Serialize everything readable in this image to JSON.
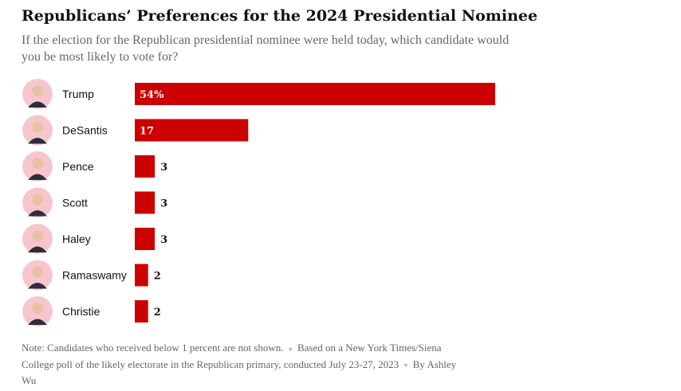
{
  "title": "Republicans’ Preferences for the 2024 Presidential Nominee",
  "subtitle": "If the election for the Republican presidential nominee were held today, which candidate would you be most likely to vote for?",
  "note": "Note: Candidates who received below 1 percent are not shown.",
  "source": "Based on a New York Times/Siena College poll of the likely electorate in the Republican primary, conducted July 23-27, 2023",
  "byline": "By Ashley Wu",
  "colors": {
    "bar": "#cc0000",
    "avatar_bg": "#f7c6cc",
    "label": "#121212",
    "value_inside": "#ffffff"
  },
  "chart_data": {
    "type": "bar",
    "orientation": "horizontal",
    "categories": [
      "Trump",
      "DeSantis",
      "Pence",
      "Scott",
      "Haley",
      "Ramaswamy",
      "Christie"
    ],
    "values": [
      54,
      17,
      3,
      3,
      3,
      2,
      2
    ],
    "value_labels": [
      "54%",
      "17",
      "3",
      "3",
      "3",
      "2",
      "2"
    ],
    "value_unit": "percent",
    "xlim": [
      0,
      54
    ],
    "grid": false,
    "legend": "none"
  }
}
